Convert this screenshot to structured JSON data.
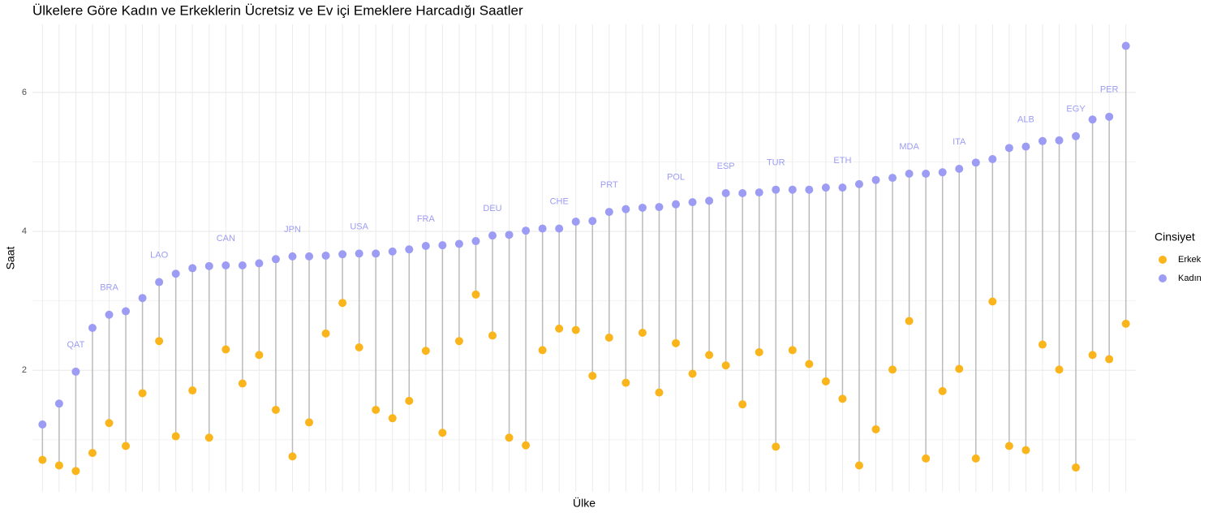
{
  "chart_data": {
    "type": "dumbbell",
    "title": "Ülkelere Göre Kadın ve Erkeklerin Ücretsiz ve Ev içi Emeklere Harcadığı Saatler",
    "x_label": "Ülke",
    "y_label": "Saat",
    "legend_title": "Cinsiyet",
    "legend_position": "right",
    "grid": true,
    "categories": [
      null,
      null,
      "QAT",
      null,
      "BRA",
      null,
      null,
      "LAO",
      null,
      null,
      null,
      "CAN",
      null,
      null,
      null,
      "JPN",
      null,
      null,
      null,
      "USA",
      null,
      null,
      null,
      "FRA",
      null,
      null,
      null,
      "DEU",
      null,
      null,
      null,
      "CHE",
      null,
      null,
      "PRT",
      null,
      null,
      null,
      "POL",
      null,
      null,
      "ESP",
      null,
      null,
      "TUR",
      null,
      null,
      null,
      "ETH",
      null,
      null,
      null,
      "MDA",
      null,
      null,
      "ITA",
      null,
      null,
      null,
      "ALB",
      null,
      null,
      "EGY",
      null,
      "PER",
      null
    ],
    "series": [
      {
        "name": "Erkek",
        "color": "#f9b51b",
        "values": [
          0.71,
          0.63,
          0.55,
          0.81,
          1.24,
          0.91,
          1.67,
          2.42,
          1.05,
          1.71,
          1.03,
          2.3,
          1.81,
          2.22,
          1.43,
          0.76,
          1.25,
          2.53,
          2.97,
          2.33,
          1.43,
          1.31,
          1.56,
          2.28,
          1.1,
          2.42,
          3.09,
          2.5,
          1.03,
          0.92,
          2.29,
          2.6,
          2.58,
          1.92,
          2.47,
          1.82,
          2.54,
          1.68,
          2.39,
          1.95,
          2.22,
          2.07,
          1.51,
          2.26,
          0.9,
          2.29,
          2.09,
          1.84,
          1.59,
          0.63,
          1.15,
          2.01,
          2.71,
          0.73,
          1.7,
          2.02,
          0.73,
          2.99,
          0.91,
          0.85,
          2.37,
          2.01,
          0.6,
          2.22,
          2.16,
          2.67
        ]
      },
      {
        "name": "Kadın",
        "color": "#9c9cf4",
        "values": [
          1.22,
          1.52,
          1.98,
          2.61,
          2.8,
          2.85,
          3.04,
          3.27,
          3.39,
          3.47,
          3.5,
          3.51,
          3.51,
          3.54,
          3.6,
          3.64,
          3.64,
          3.65,
          3.67,
          3.68,
          3.68,
          3.71,
          3.74,
          3.79,
          3.8,
          3.82,
          3.86,
          3.94,
          3.95,
          4.01,
          4.04,
          4.04,
          4.14,
          4.15,
          4.28,
          4.32,
          4.34,
          4.35,
          4.39,
          4.42,
          4.44,
          4.55,
          4.55,
          4.56,
          4.6,
          4.6,
          4.6,
          4.63,
          4.63,
          4.68,
          4.74,
          4.77,
          4.83,
          4.83,
          4.85,
          4.9,
          4.99,
          5.04,
          5.2,
          5.22,
          5.3,
          5.31,
          5.37,
          5.61,
          5.65,
          6.67
        ]
      }
    ],
    "segment_color": "#bbbbbb",
    "ylim": [
      0.25,
      6.98
    ],
    "yticks": [
      2,
      4,
      6
    ]
  }
}
